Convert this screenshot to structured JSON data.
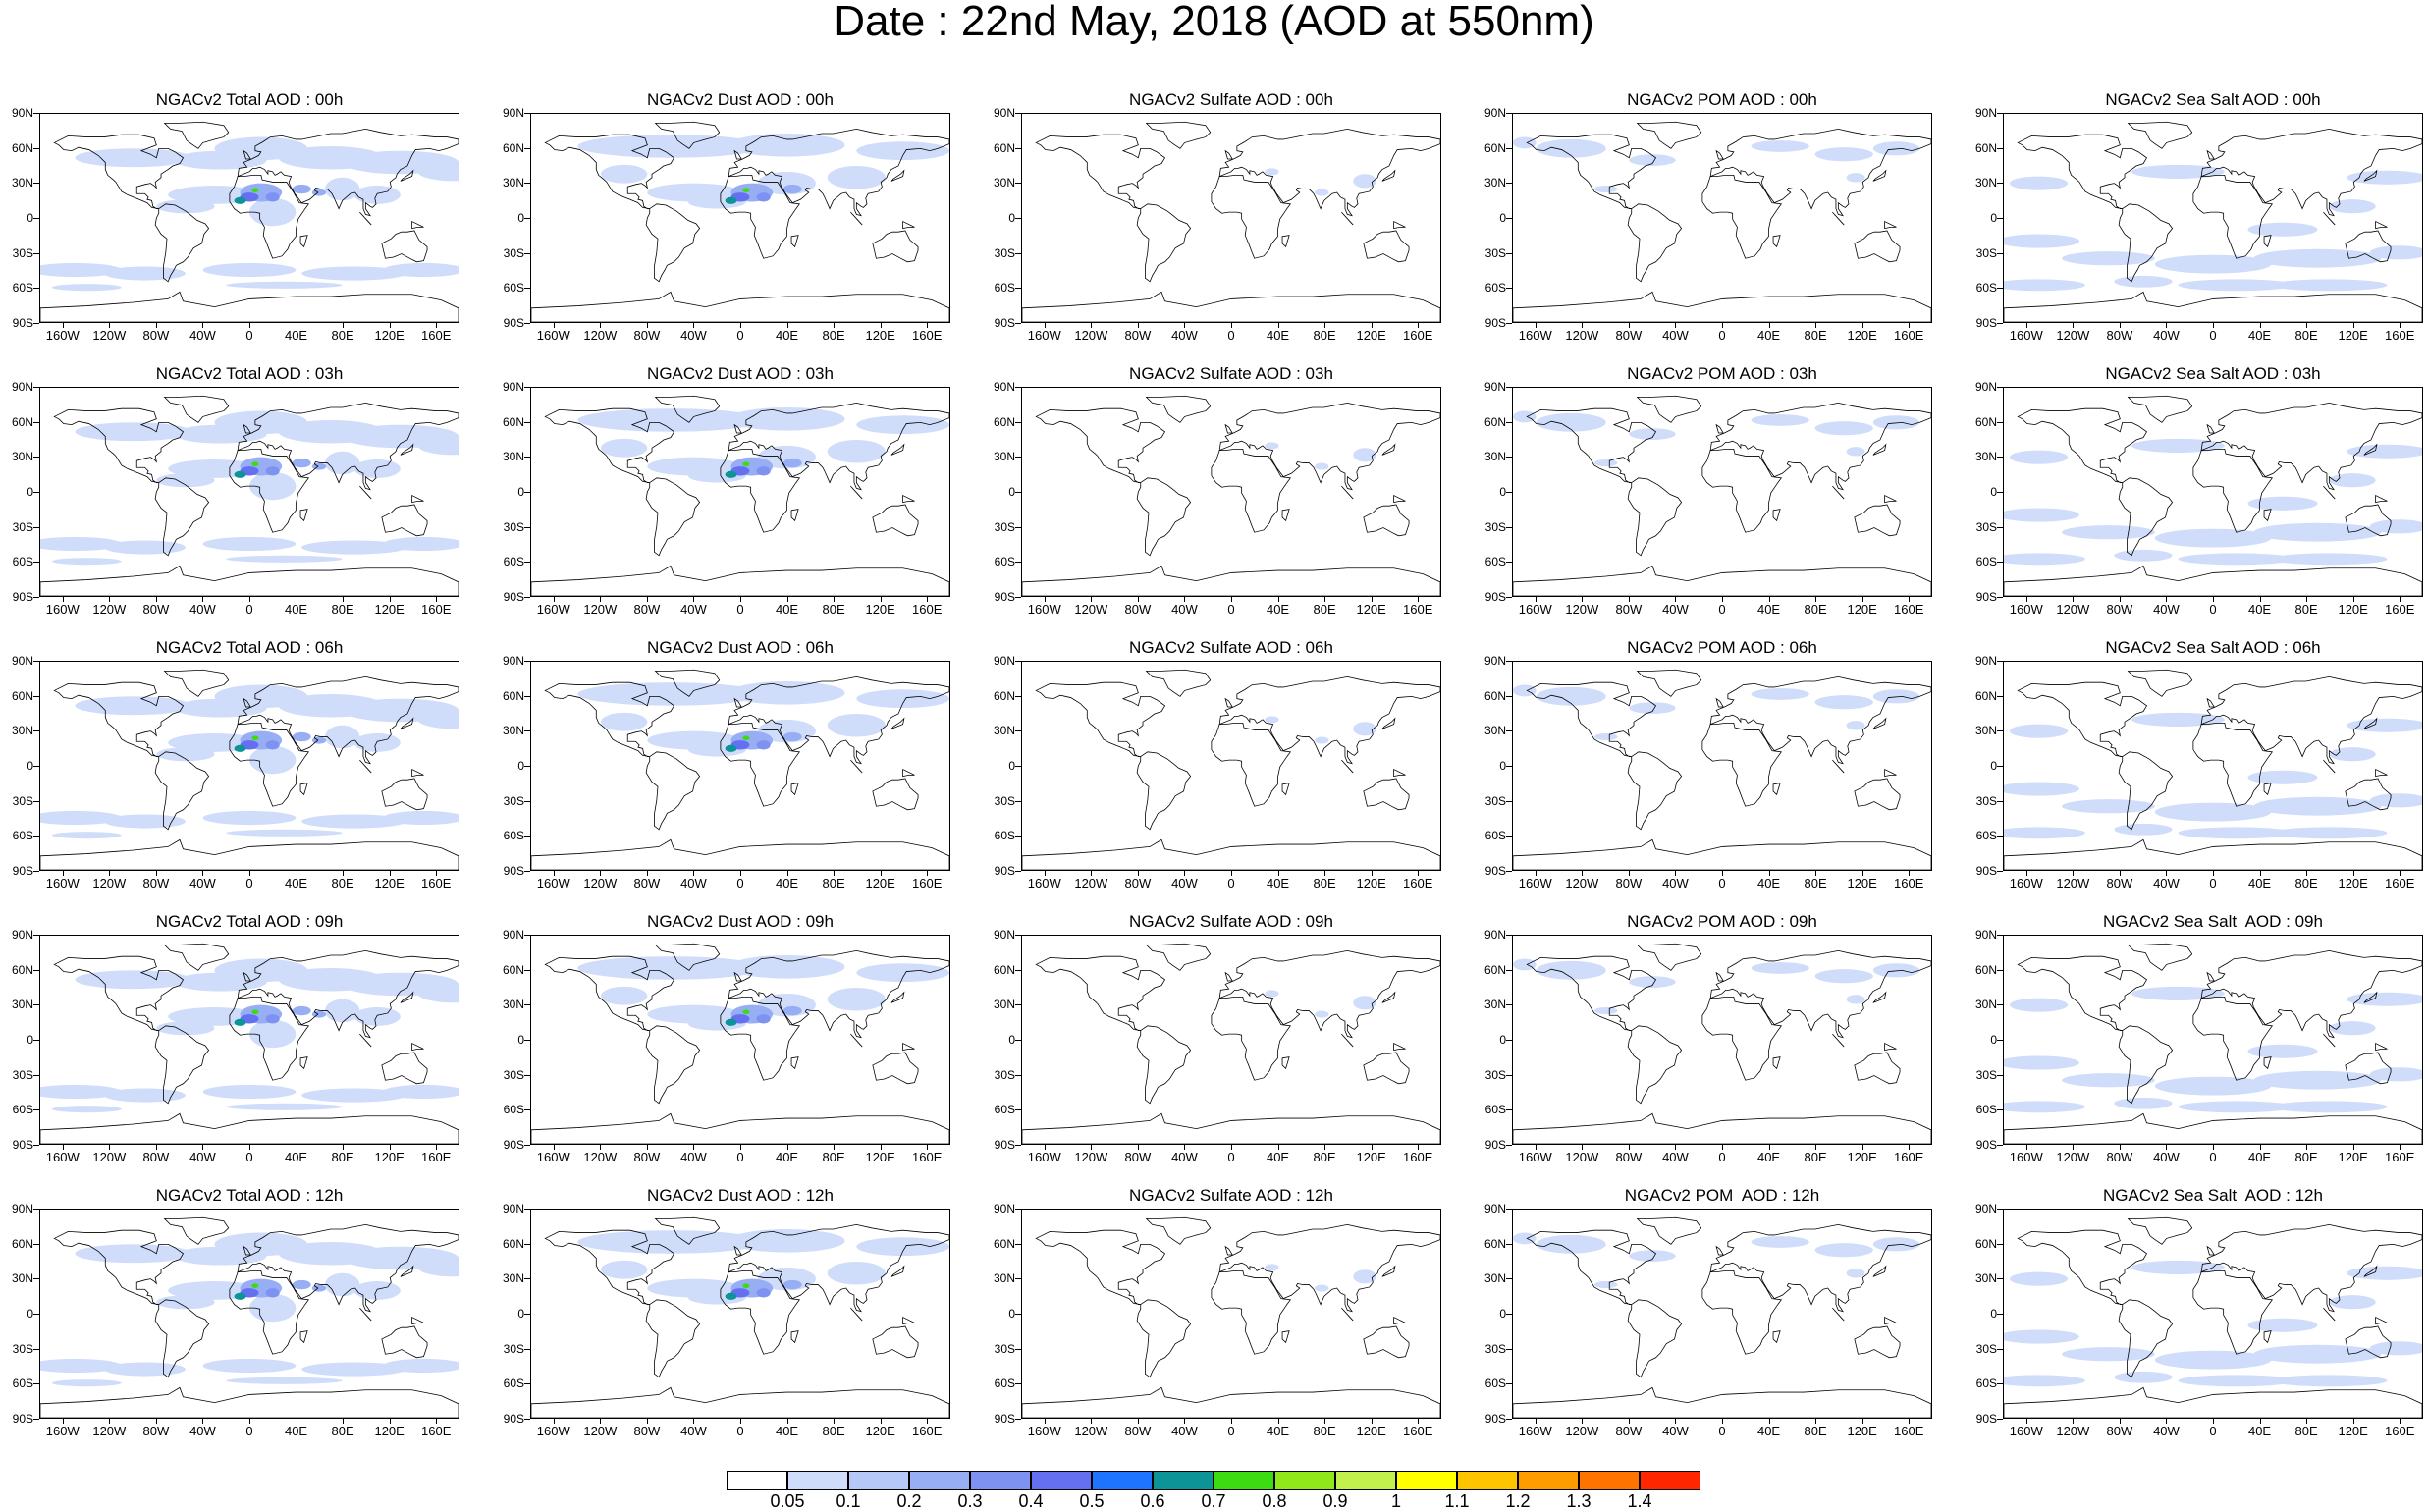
{
  "title": "Date : 22nd May, 2018 (AOD at 550nm)",
  "lat_labels": [
    "90N",
    "60N",
    "30N",
    "0",
    "30S",
    "60S",
    "90S"
  ],
  "lon_labels": [
    "160W",
    "120W",
    "80W",
    "40W",
    "0",
    "40E",
    "80E",
    "120E",
    "160E"
  ],
  "panel_titles": [
    [
      "NGACv2 Total AOD : 00h",
      "NGACv2 Dust AOD : 00h",
      "NGACv2 Sulfate AOD : 00h",
      "NGACv2 POM AOD : 00h",
      "NGACv2 Sea Salt AOD : 00h"
    ],
    [
      "NGACv2 Total AOD : 03h",
      "NGACv2 Dust AOD : 03h",
      "NGACv2 Sulfate AOD : 03h",
      "NGACv2 POM AOD : 03h",
      "NGACv2 Sea Salt AOD : 03h"
    ],
    [
      "NGACv2 Total AOD : 06h",
      "NGACv2 Dust AOD : 06h",
      "NGACv2 Sulfate AOD : 06h",
      "NGACv2 POM AOD : 06h",
      "NGACv2 Sea Salt AOD : 06h"
    ],
    [
      "NGACv2 Total AOD : 09h",
      "NGACv2 Dust AOD : 09h",
      "NGACv2 Sulfate AOD : 09h",
      "NGACv2 POM AOD : 09h",
      "NGACv2 Sea Salt  AOD : 09h"
    ],
    [
      "NGACv2 Total AOD : 12h",
      "NGACv2 Dust AOD : 12h",
      "NGACv2 Sulfate AOD : 12h",
      "NGACv2 POM  AOD : 12h",
      "NGACv2 Sea Salt  AOD : 12h"
    ]
  ],
  "panel_kinds": [
    "total",
    "dust",
    "sulfate",
    "pom",
    "seasalt"
  ],
  "colorbar": {
    "labels": [
      "0.05",
      "0.1",
      "0.2",
      "0.3",
      "0.4",
      "0.5",
      "0.6",
      "0.7",
      "0.8",
      "0.9",
      "1",
      "1.1",
      "1.2",
      "1.3",
      "1.4"
    ],
    "colors": [
      "#ffffff",
      "#cfdcfa",
      "#b6c8f7",
      "#97aef5",
      "#7e92f2",
      "#6470ef",
      "#1f74ff",
      "#0c9496",
      "#3ddc12",
      "#90e81a",
      "#c2f04c",
      "#ffff00",
      "#ffc400",
      "#ff9d00",
      "#ff7300",
      "#ff2600"
    ]
  }
}
